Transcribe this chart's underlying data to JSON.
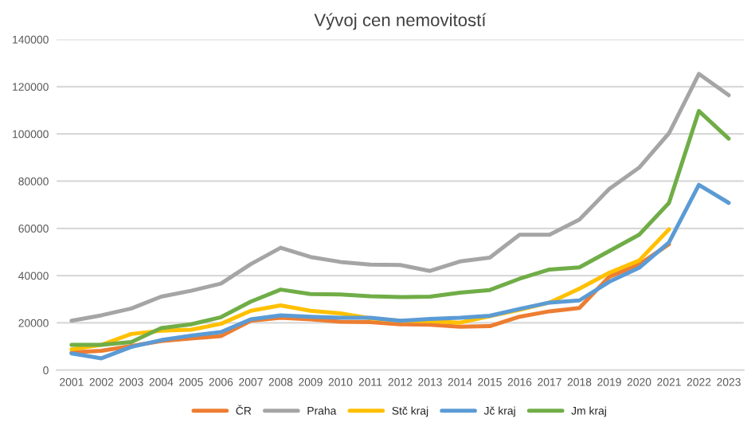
{
  "chart_data": {
    "type": "line",
    "title": "Vývoj cen nemovitostí",
    "categories": [
      "2001",
      "2002",
      "2003",
      "2004",
      "2005",
      "2006",
      "2007",
      "2008",
      "2009",
      "2010",
      "2011",
      "2012",
      "2013",
      "2014",
      "2015",
      "2016",
      "2017",
      "2018",
      "2019",
      "2020",
      "2021",
      "2022",
      "2023"
    ],
    "series": [
      {
        "name": "ČR",
        "color": "#ed7d31",
        "values": [
          7500,
          8200,
          10200,
          12300,
          13400,
          14400,
          20900,
          22200,
          21500,
          20500,
          20300,
          19400,
          19200,
          18400,
          18600,
          22600,
          24900,
          26300,
          39500,
          44700,
          53300,
          null,
          null
        ]
      },
      {
        "name": "Praha",
        "color": "#a5a5a5",
        "values": [
          20900,
          23200,
          26100,
          31100,
          33600,
          36600,
          44900,
          51800,
          47900,
          45800,
          44700,
          44500,
          42000,
          46000,
          47600,
          57300,
          57300,
          63700,
          76700,
          85700,
          100300,
          125400,
          116400
        ]
      },
      {
        "name": "Stč kraj",
        "color": "#ffc000",
        "values": [
          8800,
          10700,
          15300,
          16700,
          17100,
          19600,
          25100,
          27400,
          25100,
          24000,
          21900,
          20900,
          20700,
          20100,
          22800,
          25500,
          28600,
          34500,
          41200,
          46400,
          59600,
          null,
          null
        ]
      },
      {
        "name": "Jč kraj",
        "color": "#5b9bd5",
        "values": [
          7100,
          5000,
          9800,
          12700,
          14600,
          16100,
          21500,
          23200,
          22600,
          22200,
          22200,
          20900,
          21700,
          22200,
          23000,
          25900,
          28600,
          29500,
          37400,
          43300,
          54100,
          78400,
          70800
        ]
      },
      {
        "name": "Jm kraj",
        "color": "#70ad47",
        "values": [
          10700,
          10700,
          11900,
          17800,
          19400,
          22400,
          29000,
          34100,
          32200,
          32000,
          31300,
          30900,
          31100,
          32800,
          33900,
          38700,
          42600,
          43500,
          50400,
          57300,
          70800,
          109700,
          98000
        ]
      }
    ],
    "ylim": [
      0,
      140000
    ],
    "yticks": [
      0,
      20000,
      40000,
      60000,
      80000,
      100000,
      120000,
      140000
    ],
    "grid": "y",
    "legend": "bottom",
    "marker": "none",
    "line_style": "solid"
  }
}
